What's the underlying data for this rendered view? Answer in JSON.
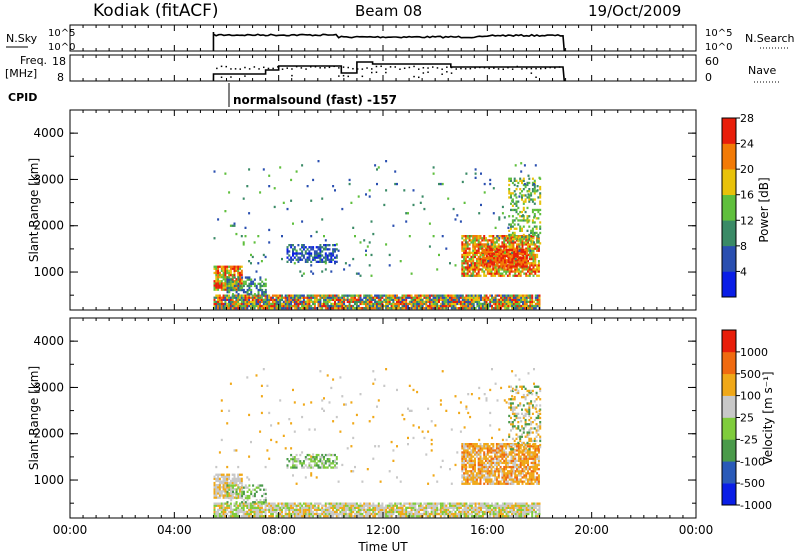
{
  "header": {
    "station": "Kodiak (fitACF)",
    "beam": "Beam 08",
    "date": "19/Oct/2009"
  },
  "panels": {
    "nsky": {
      "left_label": "N.Sky",
      "right_label": "N.Search",
      "tick_high": "10^5",
      "tick_low": "10^0"
    },
    "freq": {
      "left_label_1": "Freq.",
      "left_label_2": "[MHz]",
      "right_label": "Nave",
      "left_ticks": [
        "18",
        "8"
      ],
      "right_ticks": [
        "60",
        "0"
      ]
    },
    "cpid": {
      "label": "CPID",
      "program": "normalsound (fast) -157"
    }
  },
  "chart_data": [
    {
      "type": "heatmap",
      "name": "Power",
      "ylabel": "Slant Range [km]",
      "ylim": [
        180,
        4500
      ],
      "yticks": [
        "1000",
        "2000",
        "3000",
        "4000"
      ],
      "colorbar_label": "Power [dB]",
      "colorbar_ticks": [
        "4",
        "8",
        "12",
        "16",
        "20",
        "24",
        "28"
      ],
      "colorbar_colors": [
        "#0a1ee6",
        "#2a4fb0",
        "#3a8a66",
        "#5fbf3c",
        "#e8c20a",
        "#f27a06",
        "#e81e0a"
      ]
    },
    {
      "type": "heatmap",
      "name": "Velocity",
      "ylabel": "Slant Range [km]",
      "ylim": [
        180,
        4500
      ],
      "yticks": [
        "1000",
        "2000",
        "3000",
        "4000"
      ],
      "colorbar_label": "Velocity [m s⁻¹]",
      "colorbar_ticks": [
        "1000",
        "500",
        "100",
        "25",
        "-25",
        "-100",
        "-500",
        "-1000"
      ],
      "colorbar_colors": [
        "#0a1ee6",
        "#2a5ab8",
        "#4a9a4a",
        "#7fcc3c",
        "#c8c8c8",
        "#f0a818",
        "#f06a10",
        "#e81e0a"
      ]
    }
  ],
  "xaxis": {
    "label": "Time UT",
    "ticks": [
      "00:00",
      "04:00",
      "08:00",
      "12:00",
      "16:00",
      "20:00",
      "00:00"
    ]
  }
}
